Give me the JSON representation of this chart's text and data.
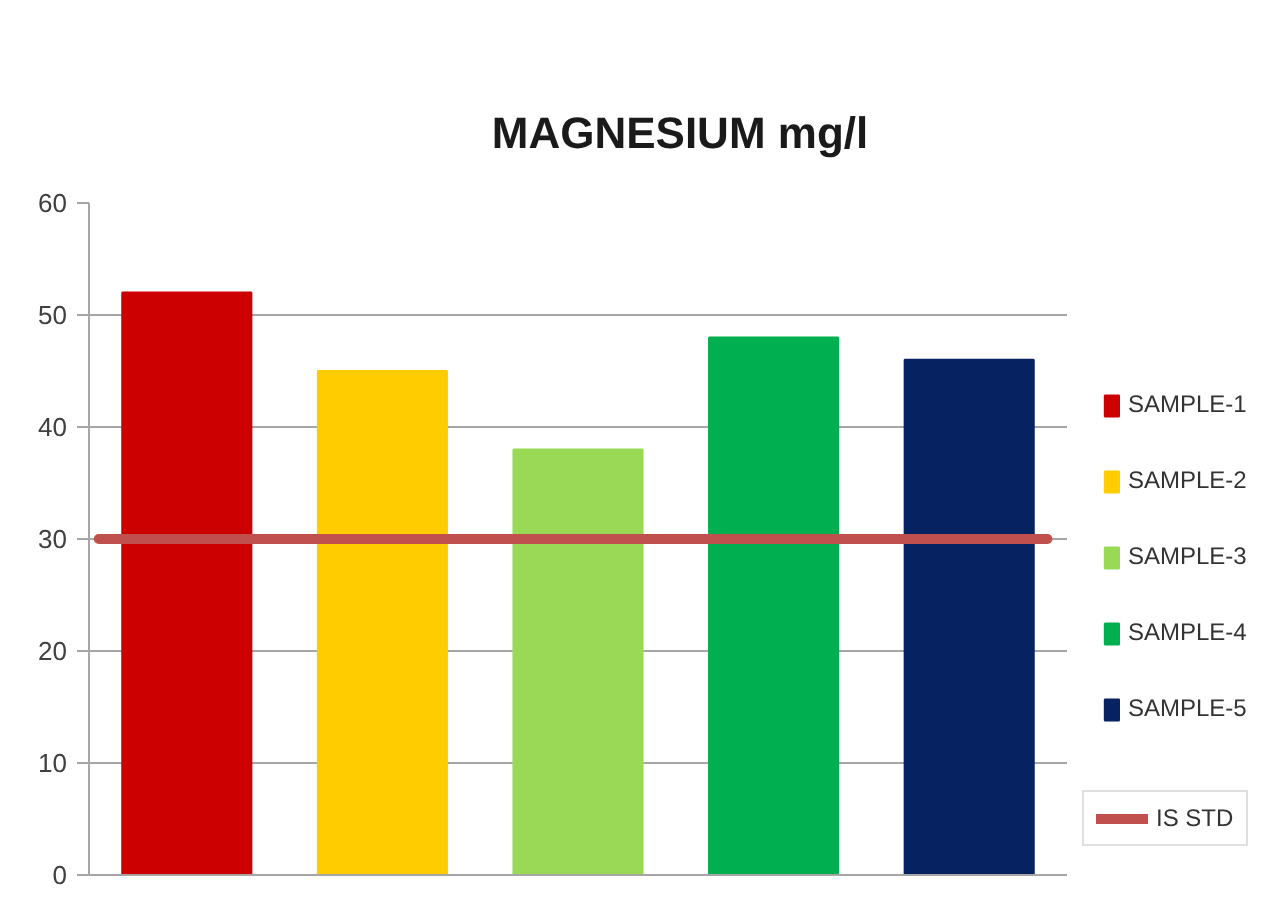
{
  "chart_data": {
    "type": "bar",
    "title": "MAGNESIUM mg/l",
    "categories": [
      null
    ],
    "series": [
      {
        "name": "SAMPLE-1",
        "color": "#cc0000",
        "values": [
          52
        ]
      },
      {
        "name": "SAMPLE-2",
        "color": "#ffcc00",
        "values": [
          45
        ]
      },
      {
        "name": "SAMPLE-3",
        "color": "#99d955",
        "values": [
          38
        ]
      },
      {
        "name": "SAMPLE-4",
        "color": "#00b050",
        "values": [
          48
        ]
      },
      {
        "name": "SAMPLE-5",
        "color": "#062260",
        "values": [
          46
        ]
      }
    ],
    "ylim": [
      0,
      60
    ],
    "yticks": [
      0,
      10,
      20,
      30,
      40,
      50,
      60
    ],
    "grid": "y",
    "legend": "right",
    "tick_labels": "y",
    "ref_lines": [
      {
        "axis": "y",
        "value": 30,
        "label": "IS STD",
        "color": "#c0504d"
      }
    ]
  }
}
